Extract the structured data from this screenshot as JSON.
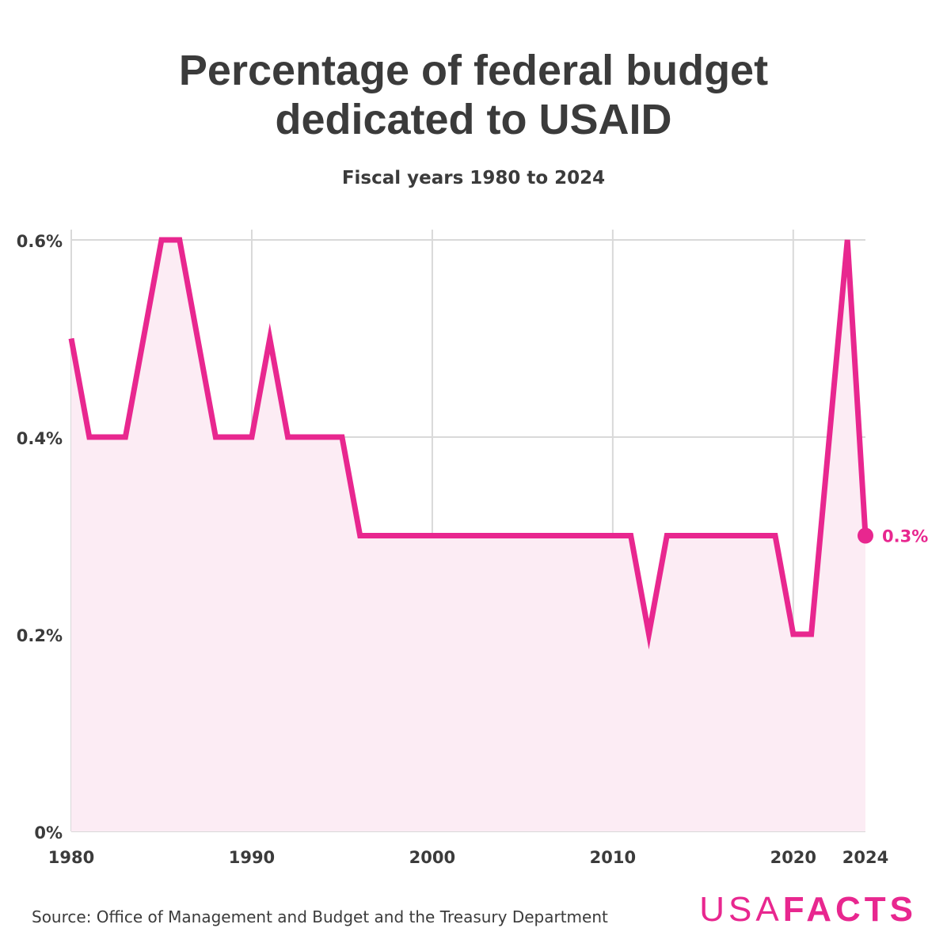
{
  "title": "Percentage of federal budget dedicated to USAID",
  "subtitle": "Fiscal years 1980 to 2024",
  "source": "Source: Office of Management and Budget and the Treasury Department",
  "brand": {
    "part1": "USA",
    "part2": "FACTS"
  },
  "colors": {
    "accent": "#e8278f",
    "fill": "#fcecf4",
    "grid": "#d9d9d9",
    "text": "#3b3b3b"
  },
  "chart_data": {
    "type": "area",
    "x": [
      1980,
      1981,
      1982,
      1983,
      1984,
      1985,
      1986,
      1987,
      1988,
      1989,
      1990,
      1991,
      1992,
      1993,
      1994,
      1995,
      1996,
      1997,
      1998,
      1999,
      2000,
      2001,
      2002,
      2003,
      2004,
      2005,
      2006,
      2007,
      2008,
      2009,
      2010,
      2011,
      2012,
      2013,
      2014,
      2015,
      2016,
      2017,
      2018,
      2019,
      2020,
      2021,
      2022,
      2023,
      2024
    ],
    "series": [
      {
        "values": [
          0.5,
          0.4,
          0.4,
          0.4,
          0.5,
          0.6,
          0.6,
          0.5,
          0.4,
          0.4,
          0.4,
          0.5,
          0.4,
          0.4,
          0.4,
          0.4,
          0.3,
          0.3,
          0.3,
          0.3,
          0.3,
          0.3,
          0.3,
          0.3,
          0.3,
          0.3,
          0.3,
          0.3,
          0.3,
          0.3,
          0.3,
          0.3,
          0.2,
          0.3,
          0.3,
          0.3,
          0.3,
          0.3,
          0.3,
          0.3,
          0.2,
          0.2,
          0.4,
          0.6,
          0.3
        ]
      }
    ],
    "xlim": [
      1980,
      2024
    ],
    "ylim": [
      0,
      0.6
    ],
    "x_ticks": [
      1980,
      1990,
      2000,
      2010,
      2020,
      2024
    ],
    "x_tick_labels": [
      "1980",
      "1990",
      "2000",
      "2010",
      "2020",
      "2024"
    ],
    "y_ticks": [
      0,
      0.2,
      0.4,
      0.6
    ],
    "y_tick_labels": [
      "0%",
      "0.2%",
      "0.4%",
      "0.6%"
    ],
    "end_label": "0.3%",
    "grid": true,
    "xlabel": "",
    "ylabel": ""
  }
}
